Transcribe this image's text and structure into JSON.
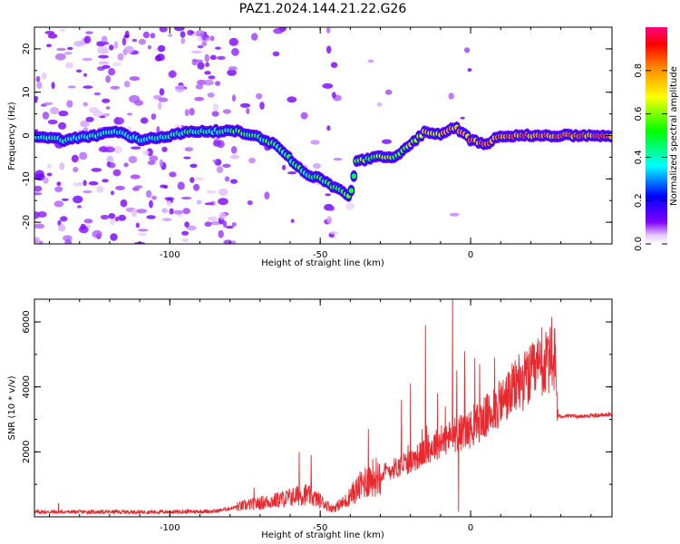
{
  "title": "PAZ1.2024.144.21.22.G26",
  "chart_data": [
    {
      "type": "heatmap",
      "xlabel": "Height of straight line (km)",
      "ylabel": "Frequency (Hz)",
      "xlim": [
        -145,
        47
      ],
      "ylim": [
        -25,
        25
      ],
      "x_ticks": [
        -100,
        -50,
        0
      ],
      "y_ticks": [
        -20,
        -10,
        0,
        10,
        20
      ],
      "colorbar": {
        "label": "Normalized spectral amplitude",
        "range": [
          0,
          1
        ],
        "ticks": [
          "0.0",
          "0.2",
          "0.4",
          "0.6",
          "0.8"
        ],
        "colormap": "gist_rainbow_r"
      },
      "ridge": [
        {
          "x": -145,
          "y": 0
        },
        {
          "x": -135,
          "y": -1
        },
        {
          "x": -125,
          "y": 0
        },
        {
          "x": -118,
          "y": 1
        },
        {
          "x": -110,
          "y": -1
        },
        {
          "x": -100,
          "y": 0
        },
        {
          "x": -92,
          "y": 1
        },
        {
          "x": -85,
          "y": 1
        },
        {
          "x": -78,
          "y": 1
        },
        {
          "x": -72,
          "y": 0
        },
        {
          "x": -68,
          "y": -1
        },
        {
          "x": -63,
          "y": -3
        },
        {
          "x": -58,
          "y": -7
        },
        {
          "x": -54,
          "y": -9
        },
        {
          "x": -50,
          "y": -10
        },
        {
          "x": -45,
          "y": -12
        },
        {
          "x": -40,
          "y": -14
        },
        {
          "x": -38,
          "y": -6
        },
        {
          "x": -32,
          "y": -5
        },
        {
          "x": -25,
          "y": -5
        },
        {
          "x": -20,
          "y": -2
        },
        {
          "x": -15,
          "y": 1
        },
        {
          "x": -10,
          "y": 0
        },
        {
          "x": -5,
          "y": 2
        },
        {
          "x": 0,
          "y": -1
        },
        {
          "x": 5,
          "y": -2
        },
        {
          "x": 10,
          "y": 0
        },
        {
          "x": 20,
          "y": 0
        },
        {
          "x": 30,
          "y": 0
        },
        {
          "x": 40,
          "y": 0
        },
        {
          "x": 47,
          "y": 0
        }
      ],
      "ridge_amplitude": [
        {
          "x": -145,
          "v": 0.5
        },
        {
          "x": -110,
          "v": 0.5
        },
        {
          "x": -90,
          "v": 0.55
        },
        {
          "x": -75,
          "v": 0.6
        },
        {
          "x": -60,
          "v": 0.55
        },
        {
          "x": -45,
          "v": 0.6
        },
        {
          "x": -35,
          "v": 0.65
        },
        {
          "x": -20,
          "v": 0.75
        },
        {
          "x": -10,
          "v": 0.85
        },
        {
          "x": 0,
          "v": 0.9
        },
        {
          "x": 10,
          "v": 0.95
        },
        {
          "x": 47,
          "v": 0.95
        }
      ]
    },
    {
      "type": "line",
      "xlabel": "Height of straight line (km)",
      "ylabel": "SNR (10 * v/v)",
      "xlim": [
        -145,
        47
      ],
      "ylim": [
        0,
        6700
      ],
      "x_ticks": [
        -100,
        -50,
        0
      ],
      "y_ticks": [
        2000,
        4000,
        6000
      ],
      "color": "#e8292f",
      "trend": [
        {
          "x": -145,
          "y": 150
        },
        {
          "x": -100,
          "y": 150
        },
        {
          "x": -85,
          "y": 170
        },
        {
          "x": -75,
          "y": 350
        },
        {
          "x": -65,
          "y": 500
        },
        {
          "x": -55,
          "y": 700
        },
        {
          "x": -50,
          "y": 500
        },
        {
          "x": -46,
          "y": 250
        },
        {
          "x": -42,
          "y": 450
        },
        {
          "x": -35,
          "y": 1100
        },
        {
          "x": -28,
          "y": 1400
        },
        {
          "x": -20,
          "y": 1700
        },
        {
          "x": -12,
          "y": 2200
        },
        {
          "x": -6,
          "y": 2500
        },
        {
          "x": 0,
          "y": 2700
        },
        {
          "x": 8,
          "y": 3300
        },
        {
          "x": 15,
          "y": 4000
        },
        {
          "x": 22,
          "y": 4500
        },
        {
          "x": 28,
          "y": 4900
        },
        {
          "x": 29,
          "y": 3100
        },
        {
          "x": 38,
          "y": 3100
        },
        {
          "x": 47,
          "y": 3150
        }
      ],
      "spikes": [
        {
          "x": -137,
          "y": 420
        },
        {
          "x": -72,
          "y": 900
        },
        {
          "x": -57,
          "y": 2000
        },
        {
          "x": -53,
          "y": 1900
        },
        {
          "x": -34,
          "y": 2700
        },
        {
          "x": -23,
          "y": 3600
        },
        {
          "x": -20,
          "y": 4100
        },
        {
          "x": -15,
          "y": 5900
        },
        {
          "x": -11,
          "y": 3800
        },
        {
          "x": -6,
          "y": 6700
        },
        {
          "x": -4,
          "y": 150
        },
        {
          "x": -2,
          "y": 5100
        },
        {
          "x": 3,
          "y": 4700
        },
        {
          "x": 8,
          "y": 4900
        },
        {
          "x": 16,
          "y": 5000
        }
      ]
    }
  ]
}
